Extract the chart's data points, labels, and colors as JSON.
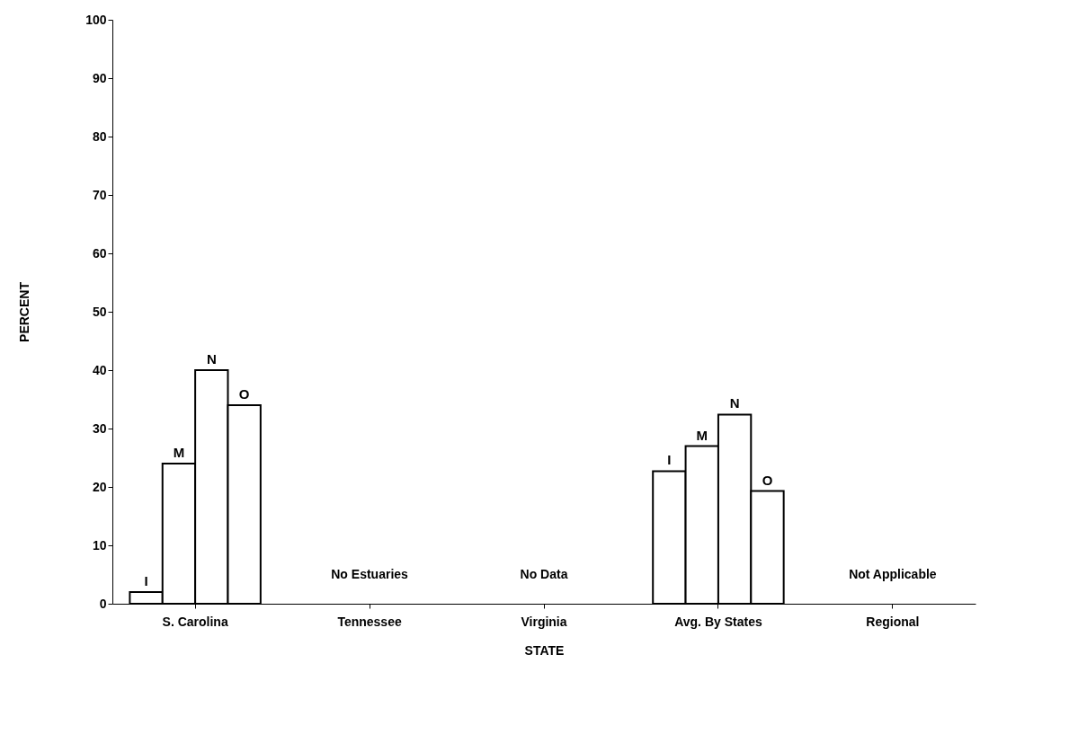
{
  "chart_data": {
    "type": "bar",
    "xlabel": "STATE",
    "ylabel": "PERCENT",
    "categories": [
      "S. Carolina",
      "Tennessee",
      "Virginia",
      "Avg. By States",
      "Regional"
    ],
    "series": [
      {
        "name": "I",
        "color": "#ffffff",
        "values": [
          2,
          null,
          null,
          22.7,
          null
        ]
      },
      {
        "name": "M",
        "color": "#ffffff",
        "values": [
          24,
          null,
          null,
          27,
          null
        ]
      },
      {
        "name": "N",
        "color": "#ffffff",
        "values": [
          40,
          null,
          null,
          32.4,
          null
        ]
      },
      {
        "name": "O",
        "color": "#ffffff",
        "values": [
          34,
          null,
          null,
          19.3,
          null
        ]
      }
    ],
    "ylim": [
      0,
      100
    ],
    "yticks": [
      0,
      10,
      20,
      30,
      40,
      50,
      60,
      70,
      80,
      90,
      100
    ],
    "grid": false,
    "legend": false,
    "annotations": [
      "No Estuaries",
      "No Data",
      "Not Applicable"
    ]
  }
}
